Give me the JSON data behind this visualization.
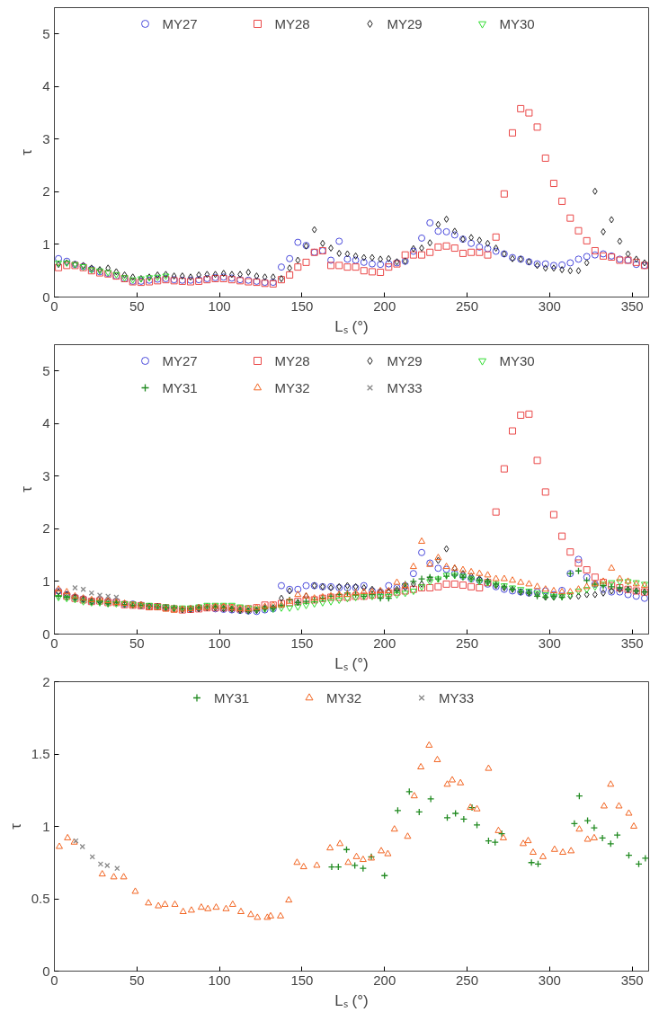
{
  "chart_data": [
    {
      "type": "scatter",
      "xlabel": "Lₛ (°)",
      "ylabel": "τ",
      "legend": "top",
      "grid": false,
      "xlim": [
        0,
        360
      ],
      "ylim": [
        0,
        5.5
      ],
      "xticks": [
        0,
        50,
        100,
        150,
        200,
        250,
        300,
        350
      ],
      "yticks": [
        0,
        1,
        2,
        3,
        4,
        5
      ],
      "x": [
        2.5,
        7.5,
        12.5,
        17.5,
        22.5,
        27.5,
        32.5,
        37.5,
        42.5,
        47.5,
        52.5,
        57.5,
        62.5,
        67.5,
        72.5,
        77.5,
        82.5,
        87.5,
        92.5,
        97.5,
        102.5,
        107.5,
        112.5,
        117.5,
        122.5,
        127.5,
        132.5,
        137.5,
        142.5,
        147.5,
        152.5,
        157.5,
        162.5,
        167.5,
        172.5,
        177.5,
        182.5,
        187.5,
        192.5,
        197.5,
        202.5,
        207.5,
        212.5,
        217.5,
        222.5,
        227.5,
        232.5,
        237.5,
        242.5,
        247.5,
        252.5,
        257.5,
        262.5,
        267.5,
        272.5,
        277.5,
        282.5,
        287.5,
        292.5,
        297.5,
        302.5,
        307.5,
        312.5,
        317.5,
        322.5,
        327.5,
        332.5,
        337.5,
        342.5,
        347.5,
        352.5,
        357.5
      ],
      "series": [
        {
          "name": "MY27",
          "color": "#4b4bdc",
          "marker": "circle",
          "values": [
            0.73,
            0.68,
            0.62,
            0.58,
            0.53,
            0.48,
            0.45,
            0.4,
            0.35,
            0.3,
            0.3,
            0.32,
            0.34,
            0.35,
            0.33,
            0.32,
            0.32,
            0.33,
            0.35,
            0.37,
            0.38,
            0.36,
            0.33,
            0.32,
            0.3,
            0.28,
            0.28,
            0.57,
            0.73,
            1.04,
            0.98,
            0.85,
            0.88,
            0.7,
            1.06,
            0.72,
            0.7,
            0.66,
            0.63,
            0.62,
            0.63,
            0.65,
            0.68,
            0.87,
            1.12,
            1.41,
            1.25,
            1.24,
            1.18,
            1.1,
            1.02,
            0.95,
            0.92,
            0.87,
            0.82,
            0.75,
            0.72,
            0.67,
            0.63,
            0.63,
            0.6,
            0.61,
            0.65,
            0.72,
            0.77,
            0.8,
            0.82,
            0.78,
            0.72,
            0.7,
            0.62,
            0.6
          ]
        },
        {
          "name": "MY28",
          "color": "#ea4848",
          "marker": "square",
          "values": [
            0.56,
            0.6,
            0.6,
            0.56,
            0.5,
            0.46,
            0.44,
            0.4,
            0.35,
            0.29,
            0.28,
            0.29,
            0.31,
            0.33,
            0.31,
            0.3,
            0.29,
            0.3,
            0.33,
            0.35,
            0.35,
            0.33,
            0.31,
            0.29,
            0.28,
            0.26,
            0.25,
            0.33,
            0.42,
            0.57,
            0.66,
            0.85,
            0.88,
            0.6,
            0.6,
            0.57,
            0.57,
            0.5,
            0.48,
            0.47,
            0.57,
            0.63,
            0.8,
            0.8,
            0.8,
            0.85,
            0.95,
            0.97,
            0.93,
            0.83,
            0.85,
            0.85,
            0.8,
            1.14,
            1.96,
            3.12,
            3.58,
            3.5,
            3.23,
            2.64,
            2.16,
            1.82,
            1.5,
            1.26,
            1.07,
            0.88,
            0.78,
            0.76,
            0.7,
            0.7,
            0.66,
            0.6
          ]
        },
        {
          "name": "MY29",
          "color": "#222222",
          "marker": "diamond",
          "values": [
            0.62,
            0.65,
            0.62,
            0.6,
            0.55,
            0.52,
            0.55,
            0.48,
            0.42,
            0.38,
            0.35,
            0.38,
            0.42,
            0.43,
            0.4,
            0.4,
            0.38,
            0.42,
            0.43,
            0.43,
            0.45,
            0.43,
            0.43,
            0.47,
            0.4,
            0.38,
            0.38,
            0.35,
            0.55,
            0.7,
            0.97,
            1.28,
            1.02,
            0.93,
            0.83,
            0.82,
            0.78,
            0.75,
            0.75,
            0.72,
            0.73,
            0.67,
            0.68,
            0.92,
            0.93,
            1.03,
            1.38,
            1.48,
            1.25,
            1.1,
            1.13,
            1.08,
            1.02,
            0.93,
            0.82,
            0.73,
            0.72,
            0.67,
            0.6,
            0.55,
            0.55,
            0.52,
            0.5,
            0.5,
            0.65,
            2.01,
            1.24,
            1.47,
            1.06,
            0.82,
            0.72,
            0.65
          ]
        },
        {
          "name": "MY30",
          "color": "#33dd33",
          "marker": "triangle_down",
          "x": [
            2.5,
            7.5,
            12.5,
            17.5,
            22.5,
            27.5,
            32.5,
            37.5,
            42.5,
            47.5,
            52.5,
            57.5,
            62.5,
            67.5
          ],
          "values": [
            0.65,
            0.65,
            0.62,
            0.58,
            0.52,
            0.5,
            0.47,
            0.43,
            0.37,
            0.33,
            0.35,
            0.37,
            0.38,
            0.4
          ]
        }
      ]
    },
    {
      "type": "scatter",
      "xlabel": "Lₛ (°)",
      "ylabel": "τ",
      "legend": "top",
      "grid": false,
      "xlim": [
        0,
        360
      ],
      "ylim": [
        0,
        5.5
      ],
      "xticks": [
        0,
        50,
        100,
        150,
        200,
        250,
        300,
        350
      ],
      "yticks": [
        0,
        1,
        2,
        3,
        4,
        5
      ],
      "x": [
        2.5,
        7.5,
        12.5,
        17.5,
        22.5,
        27.5,
        32.5,
        37.5,
        42.5,
        47.5,
        52.5,
        57.5,
        62.5,
        67.5,
        72.5,
        77.5,
        82.5,
        87.5,
        92.5,
        97.5,
        102.5,
        107.5,
        112.5,
        117.5,
        122.5,
        127.5,
        132.5,
        137.5,
        142.5,
        147.5,
        152.5,
        157.5,
        162.5,
        167.5,
        172.5,
        177.5,
        182.5,
        187.5,
        192.5,
        197.5,
        202.5,
        207.5,
        212.5,
        217.5,
        222.5,
        227.5,
        232.5,
        237.5,
        242.5,
        247.5,
        252.5,
        257.5,
        262.5,
        267.5,
        272.5,
        277.5,
        282.5,
        287.5,
        292.5,
        297.5,
        302.5,
        307.5,
        312.5,
        317.5,
        322.5,
        327.5,
        332.5,
        337.5,
        342.5,
        347.5,
        352.5,
        357.5
      ],
      "series": [
        {
          "name": "MY27",
          "color": "#4b4bdc",
          "marker": "circle",
          "values": [
            0.82,
            0.75,
            0.7,
            0.67,
            0.62,
            0.65,
            0.62,
            0.62,
            0.57,
            0.57,
            0.55,
            0.52,
            0.52,
            0.5,
            null,
            null,
            0.48,
            0.5,
            null,
            0.48,
            0.47,
            0.46,
            0.45,
            0.44,
            0.43,
            0.46,
            0.48,
            0.92,
            0.85,
            0.85,
            0.92,
            0.92,
            0.9,
            0.9,
            0.88,
            0.88,
            0.88,
            0.92,
            0.82,
            0.8,
            0.92,
            0.88,
            0.92,
            1.15,
            1.55,
            1.35,
            1.25,
            1.23,
            1.15,
            1.1,
            1.05,
            1.02,
            0.95,
            0.9,
            0.85,
            0.82,
            0.8,
            0.78,
            0.8,
            0.82,
            0.75,
            0.83,
            1.15,
            1.42,
            1.08,
            0.95,
            0.85,
            0.8,
            0.8,
            0.75,
            0.72,
            0.68
          ]
        },
        {
          "name": "MY28",
          "color": "#ea4848",
          "marker": "square",
          "values": [
            0.78,
            0.72,
            0.68,
            0.65,
            0.62,
            0.63,
            0.6,
            0.6,
            0.56,
            0.55,
            0.54,
            0.52,
            0.52,
            0.5,
            0.48,
            0.46,
            0.47,
            0.48,
            0.5,
            0.5,
            0.5,
            0.5,
            0.48,
            0.48,
            0.5,
            0.55,
            0.55,
            0.58,
            0.6,
            0.62,
            0.65,
            0.65,
            0.68,
            0.7,
            0.7,
            0.7,
            0.72,
            0.72,
            0.74,
            0.75,
            0.78,
            0.8,
            0.82,
            0.85,
            0.88,
            0.88,
            0.9,
            0.95,
            0.95,
            0.93,
            0.9,
            0.88,
            0.98,
            2.32,
            3.14,
            3.86,
            4.16,
            4.18,
            3.3,
            2.7,
            2.27,
            1.86,
            1.56,
            1.35,
            1.22,
            1.08,
            0.98,
            0.92,
            0.88,
            0.85,
            0.82,
            0.8
          ]
        },
        {
          "name": "MY29",
          "color": "#222222",
          "marker": "diamond",
          "values": [
            0.8,
            0.75,
            0.7,
            0.66,
            0.62,
            0.62,
            0.62,
            0.6,
            0.57,
            0.55,
            0.55,
            0.53,
            0.52,
            0.5,
            0.48,
            0.46,
            0.47,
            0.48,
            0.5,
            0.5,
            0.48,
            0.47,
            0.45,
            0.44,
            0.45,
            0.5,
            0.5,
            0.68,
            0.82,
            0.6,
            0.72,
            0.92,
            0.9,
            0.88,
            0.9,
            0.92,
            0.9,
            0.88,
            0.85,
            0.8,
            0.8,
            0.85,
            0.88,
            0.95,
            0.95,
            1.05,
            1.4,
            1.62,
            1.25,
            1.15,
            1.1,
            1.05,
            1.0,
            0.92,
            0.88,
            0.85,
            0.8,
            0.78,
            0.75,
            0.7,
            0.7,
            0.72,
            0.72,
            0.72,
            0.75,
            0.75,
            0.78,
            0.82,
            0.85,
            0.85,
            0.82,
            0.8
          ]
        },
        {
          "name": "MY30",
          "color": "#33dd33",
          "marker": "triangle_down",
          "values": [
            0.7,
            0.68,
            0.66,
            0.62,
            0.6,
            0.6,
            0.58,
            0.58,
            0.58,
            0.57,
            0.55,
            0.55,
            0.53,
            0.52,
            0.5,
            0.5,
            0.5,
            0.52,
            0.55,
            0.55,
            0.55,
            0.55,
            0.52,
            0.5,
            0.48,
            0.48,
            0.48,
            0.5,
            0.5,
            0.52,
            0.55,
            0.58,
            0.6,
            0.62,
            0.65,
            0.68,
            0.7,
            0.72,
            0.72,
            0.72,
            0.72,
            0.75,
            0.78,
            0.82,
            0.9,
            1.0,
            1.05,
            1.12,
            1.12,
            1.1,
            1.05,
            1.0,
            0.98,
            0.95,
            0.92,
            0.88,
            0.85,
            0.82,
            0.78,
            0.75,
            0.72,
            0.72,
            0.75,
            0.82,
            0.85,
            0.9,
            0.95,
            0.98,
            1.0,
            1.0,
            0.98,
            0.95
          ]
        },
        {
          "name": "MY31",
          "color": "#228b22",
          "marker": "cross",
          "values": [
            0.72,
            0.7,
            0.68,
            0.65,
            0.62,
            0.62,
            0.58,
            0.6,
            0.56,
            0.55,
            0.55,
            0.53,
            0.52,
            0.5,
            0.5,
            0.48,
            0.48,
            0.5,
            0.52,
            0.52,
            0.5,
            0.48,
            0.45,
            0.44,
            0.45,
            0.48,
            0.5,
            0.55,
            0.65,
            0.6,
            0.62,
            0.65,
            0.68,
            0.72,
            0.75,
            0.78,
            0.75,
            0.72,
            0.75,
            0.68,
            0.68,
            0.82,
            0.95,
            1.0,
            1.05,
            1.08,
            1.05,
            1.1,
            1.12,
            1.08,
            1.05,
            1.02,
            1.0,
            0.95,
            0.9,
            0.85,
            0.8,
            0.78,
            0.72,
            0.7,
            0.72,
            0.7,
            1.15,
            1.2,
            1.02,
            0.95,
            0.92,
            0.9,
            0.88,
            0.85,
            0.82,
            0.8
          ]
        },
        {
          "name": "MY32",
          "color": "#f26522",
          "marker": "triangle",
          "values": [
            0.85,
            0.8,
            0.72,
            0.68,
            0.65,
            0.68,
            0.63,
            0.6,
            0.58,
            0.55,
            0.55,
            0.5,
            0.5,
            0.47,
            0.45,
            0.47,
            0.48,
            0.5,
            0.5,
            0.52,
            0.52,
            0.5,
            0.48,
            0.48,
            0.5,
            0.52,
            0.55,
            0.55,
            0.62,
            0.75,
            0.72,
            0.68,
            0.7,
            0.72,
            0.75,
            0.75,
            0.78,
            0.8,
            0.8,
            0.82,
            0.82,
            0.98,
            0.92,
            1.28,
            1.76,
            1.32,
            1.45,
            1.28,
            1.25,
            1.22,
            1.18,
            1.15,
            1.12,
            1.05,
            1.05,
            1.02,
            0.98,
            0.95,
            0.9,
            0.85,
            0.82,
            0.8,
            0.8,
            0.85,
            0.9,
            0.95,
            1.0,
            1.25,
            1.05,
            1.0,
            0.95,
            0.92
          ]
        },
        {
          "name": "MY33",
          "color": "#888888",
          "marker": "x",
          "x": [
            12.5,
            17.5,
            22.5,
            27.5,
            32.5,
            37.5
          ],
          "values": [
            0.88,
            0.85,
            0.78,
            0.74,
            0.72,
            0.7
          ]
        }
      ]
    },
    {
      "type": "scatter",
      "xlabel": "Lₛ (°)",
      "ylabel": "τ",
      "legend": "top",
      "grid": false,
      "xlim": [
        0,
        360
      ],
      "ylim": [
        0,
        2
      ],
      "xticks": [
        0,
        50,
        100,
        150,
        200,
        250,
        300,
        350
      ],
      "yticks": [
        0,
        0.5,
        1,
        1.5,
        2
      ],
      "series": [
        {
          "name": "MY31",
          "color": "#228b22",
          "marker": "cross",
          "x": [
            168,
            172,
            177,
            182,
            187,
            192,
            200,
            208,
            215,
            221,
            228,
            238,
            243,
            248,
            253,
            256,
            263,
            267,
            271,
            289,
            293,
            315,
            318,
            323,
            327,
            332,
            337,
            341,
            348,
            354,
            358
          ],
          "values": [
            0.72,
            0.72,
            0.84,
            0.73,
            0.71,
            0.79,
            0.66,
            1.11,
            1.24,
            1.1,
            1.19,
            1.06,
            1.09,
            1.05,
            1.13,
            1.01,
            0.9,
            0.89,
            0.95,
            0.75,
            0.74,
            1.02,
            1.21,
            1.04,
            0.99,
            0.92,
            0.88,
            0.94,
            0.8,
            0.74,
            0.78
          ]
        },
        {
          "name": "MY32",
          "color": "#f26522",
          "marker": "triangle",
          "x": [
            3,
            8,
            12,
            29,
            36,
            42,
            49,
            57,
            63,
            67,
            73,
            78,
            83,
            89,
            93,
            98,
            104,
            108,
            113,
            119,
            123,
            129,
            131,
            137,
            142,
            147,
            151,
            159,
            167,
            173,
            178,
            183,
            187,
            192,
            198,
            202,
            206,
            214,
            218,
            222,
            227,
            232,
            238,
            241,
            246,
            252,
            256,
            263,
            269,
            272,
            284,
            287,
            290,
            296,
            303,
            308,
            313,
            318,
            323,
            327,
            333,
            337,
            342,
            348,
            351
          ],
          "values": [
            0.86,
            0.92,
            0.89,
            0.67,
            0.65,
            0.65,
            0.55,
            0.47,
            0.45,
            0.46,
            0.46,
            0.41,
            0.42,
            0.44,
            0.43,
            0.44,
            0.43,
            0.46,
            0.41,
            0.39,
            0.37,
            0.37,
            0.38,
            0.38,
            0.49,
            0.75,
            0.72,
            0.73,
            0.85,
            0.88,
            0.75,
            0.79,
            0.77,
            0.78,
            0.83,
            0.81,
            0.98,
            0.93,
            1.21,
            1.41,
            1.56,
            1.46,
            1.29,
            1.32,
            1.3,
            1.13,
            1.12,
            1.4,
            0.97,
            0.92,
            0.88,
            0.9,
            0.82,
            0.79,
            0.84,
            0.82,
            0.83,
            0.98,
            0.91,
            0.92,
            1.14,
            1.29,
            1.14,
            1.09,
            1.0
          ]
        },
        {
          "name": "MY33",
          "color": "#888888",
          "marker": "x",
          "x": [
            13,
            17,
            23,
            28,
            32,
            38
          ],
          "values": [
            0.9,
            0.86,
            0.79,
            0.74,
            0.73,
            0.71
          ]
        }
      ]
    }
  ]
}
